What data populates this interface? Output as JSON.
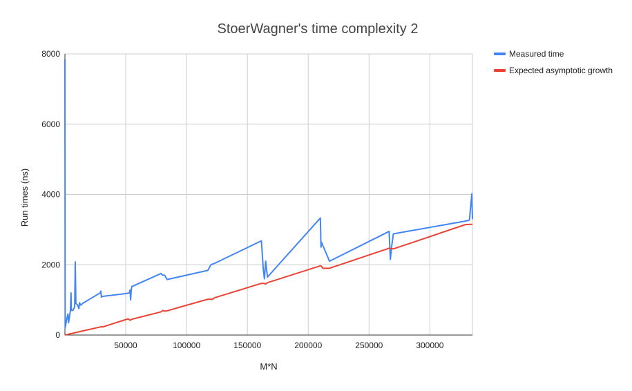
{
  "chart_data": {
    "type": "line",
    "title": "StoerWagner's time complexity 2",
    "xlabel": "M*N",
    "ylabel": "Run times (ns)",
    "xlim": [
      0,
      335000
    ],
    "ylim": [
      0,
      8000
    ],
    "xticks": [
      50000,
      100000,
      150000,
      200000,
      250000,
      300000
    ],
    "yticks": [
      0,
      2000,
      4000,
      6000,
      8000
    ],
    "grid": true,
    "legend_position": "top-right",
    "series": [
      {
        "name": "Measured time",
        "color": "#4285f4",
        "points": [
          [
            0,
            7850
          ],
          [
            200,
            200
          ],
          [
            1500,
            450
          ],
          [
            2500,
            600
          ],
          [
            3000,
            350
          ],
          [
            4500,
            700
          ],
          [
            5000,
            1200
          ],
          [
            5300,
            700
          ],
          [
            6500,
            700
          ],
          [
            8000,
            800
          ],
          [
            8500,
            2080
          ],
          [
            9000,
            900
          ],
          [
            10500,
            850
          ],
          [
            11500,
            750
          ],
          [
            12000,
            920
          ],
          [
            13000,
            850
          ],
          [
            14500,
            900
          ],
          [
            29000,
            1200
          ],
          [
            29500,
            1250
          ],
          [
            30000,
            1080
          ],
          [
            31000,
            1100
          ],
          [
            50000,
            1180
          ],
          [
            53000,
            1200
          ],
          [
            53500,
            1280
          ],
          [
            54000,
            1000
          ],
          [
            54500,
            1280
          ],
          [
            55000,
            1380
          ],
          [
            79000,
            1750
          ],
          [
            80500,
            1700
          ],
          [
            82000,
            1700
          ],
          [
            84000,
            1580
          ],
          [
            117500,
            1840
          ],
          [
            120000,
            2000
          ],
          [
            123000,
            2040
          ],
          [
            161500,
            2680
          ],
          [
            163000,
            1900
          ],
          [
            164000,
            1600
          ],
          [
            165000,
            2100
          ],
          [
            166500,
            1650
          ],
          [
            210000,
            3330
          ],
          [
            210500,
            2500
          ],
          [
            211000,
            2640
          ],
          [
            212000,
            2550
          ],
          [
            217500,
            2100
          ],
          [
            266500,
            2950
          ],
          [
            267500,
            2150
          ],
          [
            268500,
            2500
          ],
          [
            270000,
            2880
          ],
          [
            329000,
            3240
          ],
          [
            332500,
            3270
          ],
          [
            334500,
            4020
          ],
          [
            335000,
            3300
          ]
        ]
      },
      {
        "name": "Expected asymptotic growth",
        "color": "#ea4335",
        "points": [
          [
            0,
            0
          ],
          [
            29000,
            230
          ],
          [
            30000,
            240
          ],
          [
            31000,
            230
          ],
          [
            50000,
            440
          ],
          [
            52000,
            460
          ],
          [
            53500,
            420
          ],
          [
            55000,
            450
          ],
          [
            79000,
            660
          ],
          [
            80500,
            700
          ],
          [
            82000,
            680
          ],
          [
            84000,
            690
          ],
          [
            117500,
            1020
          ],
          [
            120000,
            1020
          ],
          [
            121000,
            1010
          ],
          [
            123000,
            1060
          ],
          [
            161500,
            1470
          ],
          [
            164000,
            1470
          ],
          [
            165000,
            1450
          ],
          [
            166500,
            1490
          ],
          [
            210000,
            1970
          ],
          [
            211000,
            1950
          ],
          [
            212000,
            1900
          ],
          [
            217500,
            1900
          ],
          [
            266500,
            2470
          ],
          [
            268500,
            2460
          ],
          [
            270000,
            2450
          ],
          [
            329000,
            3140
          ],
          [
            332500,
            3150
          ],
          [
            335000,
            3150
          ]
        ]
      }
    ]
  }
}
